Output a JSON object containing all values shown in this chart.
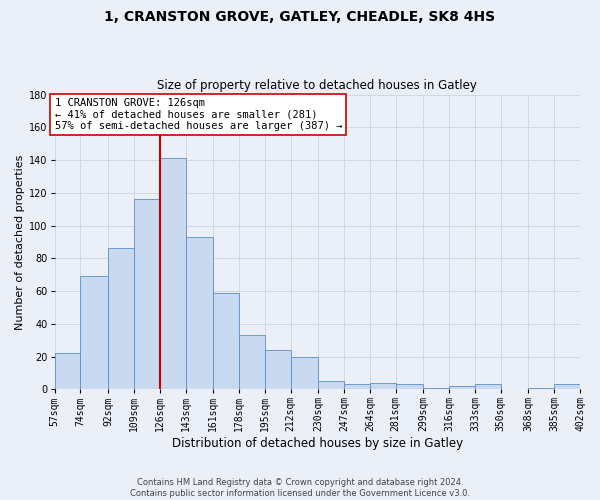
{
  "title": "1, CRANSTON GROVE, GATLEY, CHEADLE, SK8 4HS",
  "subtitle": "Size of property relative to detached houses in Gatley",
  "xlabel": "Distribution of detached houses by size in Gatley",
  "ylabel": "Number of detached properties",
  "bar_values": [
    22,
    69,
    86,
    116,
    141,
    93,
    59,
    33,
    24,
    20,
    5,
    3,
    4,
    3,
    1,
    2,
    3,
    0,
    1,
    3
  ],
  "bin_edges": [
    57,
    74,
    92,
    109,
    126,
    143,
    161,
    178,
    195,
    212,
    230,
    247,
    264,
    281,
    299,
    316,
    333,
    350,
    368,
    385,
    402
  ],
  "bin_labels": [
    "57sqm",
    "74sqm",
    "92sqm",
    "109sqm",
    "126sqm",
    "143sqm",
    "161sqm",
    "178sqm",
    "195sqm",
    "212sqm",
    "230sqm",
    "247sqm",
    "264sqm",
    "281sqm",
    "299sqm",
    "316sqm",
    "333sqm",
    "350sqm",
    "368sqm",
    "385sqm",
    "402sqm"
  ],
  "bar_color": "#c9d9f0",
  "bar_edge_color": "#5b8fc7",
  "grid_color": "#d0d8e8",
  "background_color": "#eaeff8",
  "vline_x": 126,
  "vline_color": "#cc0000",
  "annotation_line1": "1 CRANSTON GROVE: 126sqm",
  "annotation_line2": "← 41% of detached houses are smaller (281)",
  "annotation_line3": "57% of semi-detached houses are larger (387) →",
  "annotation_box_color": "#ffffff",
  "annotation_box_edge_color": "#cc0000",
  "footer_line1": "Contains HM Land Registry data © Crown copyright and database right 2024.",
  "footer_line2": "Contains public sector information licensed under the Government Licence v3.0.",
  "ylim": [
    0,
    180
  ],
  "yticks": [
    0,
    20,
    40,
    60,
    80,
    100,
    120,
    140,
    160,
    180
  ],
  "title_fontsize": 10,
  "subtitle_fontsize": 8.5,
  "ylabel_fontsize": 8,
  "xlabel_fontsize": 8.5,
  "tick_fontsize": 7,
  "annotation_fontsize": 7.5,
  "footer_fontsize": 6
}
